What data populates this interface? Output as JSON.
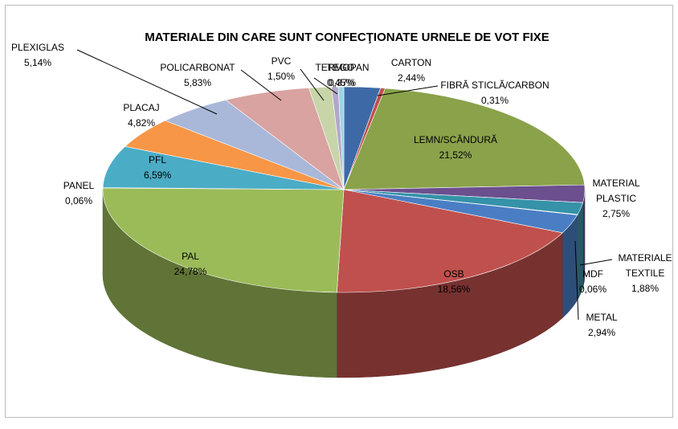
{
  "chart_data": {
    "type": "pie",
    "title": "MATERIALE DIN CARE SUNT CONFECŢIONATE URNELE  DE VOT FIXE",
    "categories": [
      "CARTON",
      "FIBRĂ STICLĂ/CARBON",
      "LEMN/SCÂNDURĂ",
      "MATERIAL PLASTIC",
      "MATERIALE TEXTILE",
      "MDF",
      "METAL",
      "OSB",
      "PAL",
      "PANEL",
      "PFL",
      "PLACAJ",
      "PLEXIGLAS",
      "POLICARBONAT",
      "PVC",
      "TEGO",
      "TERMOPAN"
    ],
    "values": [
      2.44,
      0.31,
      21.52,
      2.75,
      1.88,
      0.06,
      2.94,
      18.56,
      24.78,
      0.06,
      6.59,
      4.82,
      5.14,
      5.83,
      1.5,
      0.45,
      0.37
    ],
    "value_labels": [
      "2,44%",
      "0,31%",
      "21,52%",
      "2,75%",
      "1,88%",
      "0,06%",
      "2,94%",
      "18,56%",
      "24,78%",
      "0,06%",
      "6,59%",
      "4,82%",
      "5,14%",
      "5,83%",
      "1,50%",
      "0,45%",
      "0,37%"
    ],
    "colors": [
      "#3d6aa6",
      "#c0504d",
      "#8aa24a",
      "#6b4f8f",
      "#3592a8",
      "#e8883a",
      "#4a7ec4",
      "#c0504d",
      "#9bbb59",
      "#7f63a1",
      "#4bacc6",
      "#f79646",
      "#a9b8d9",
      "#d9a3a2",
      "#c7d5a8",
      "#b2a7c9",
      "#9ed4e3"
    ]
  }
}
